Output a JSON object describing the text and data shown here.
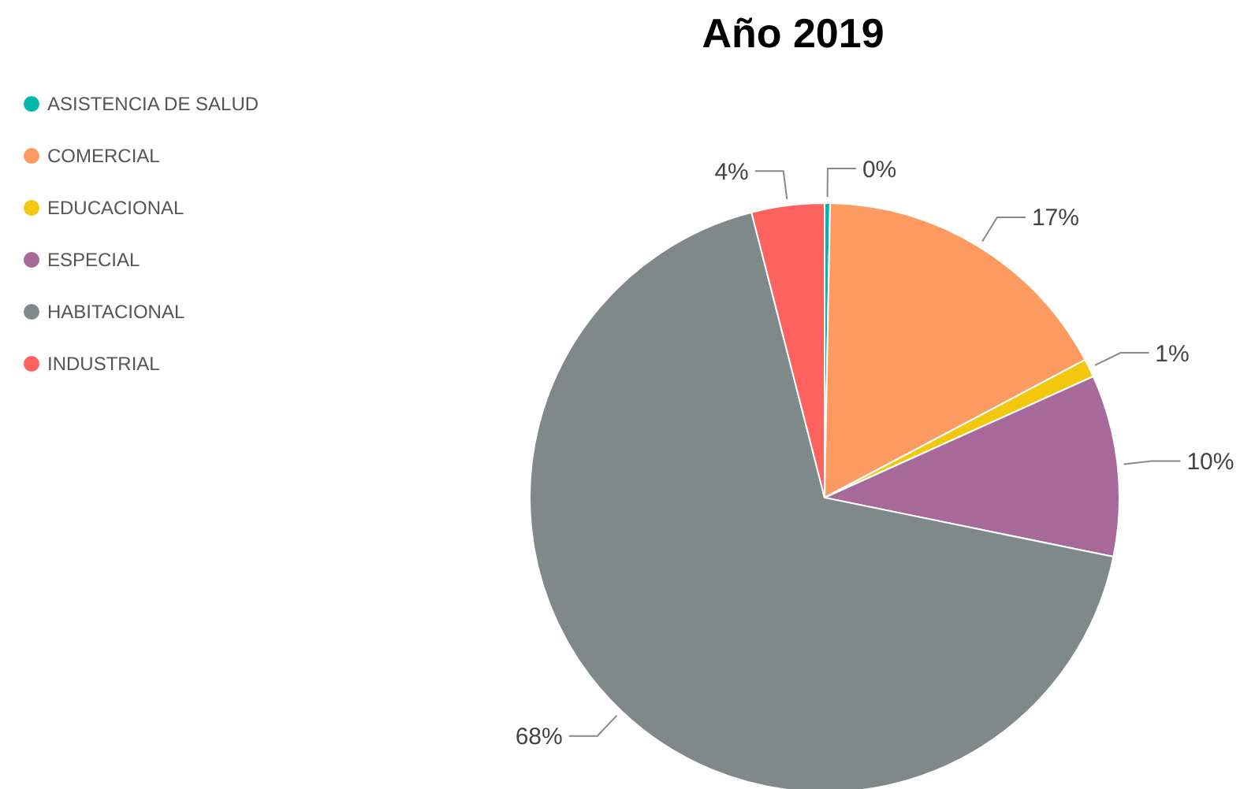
{
  "chart_data": {
    "type": "pie",
    "title": "Año 2019",
    "categories": [
      "ASISTENCIA DE SALUD",
      "COMERCIAL",
      "EDUCACIONAL",
      "ESPECIAL",
      "HABITACIONAL",
      "INDUSTRIAL"
    ],
    "values": [
      0.3,
      17,
      1,
      10,
      68,
      4
    ],
    "value_labels": [
      "0%",
      "17%",
      "1%",
      "10%",
      "68%",
      "4%"
    ],
    "colors": [
      "#01b8aa",
      "#fd9a61",
      "#f2c80f",
      "#a66999",
      "#7f898a",
      "#fd625e"
    ],
    "legend": "top left"
  }
}
